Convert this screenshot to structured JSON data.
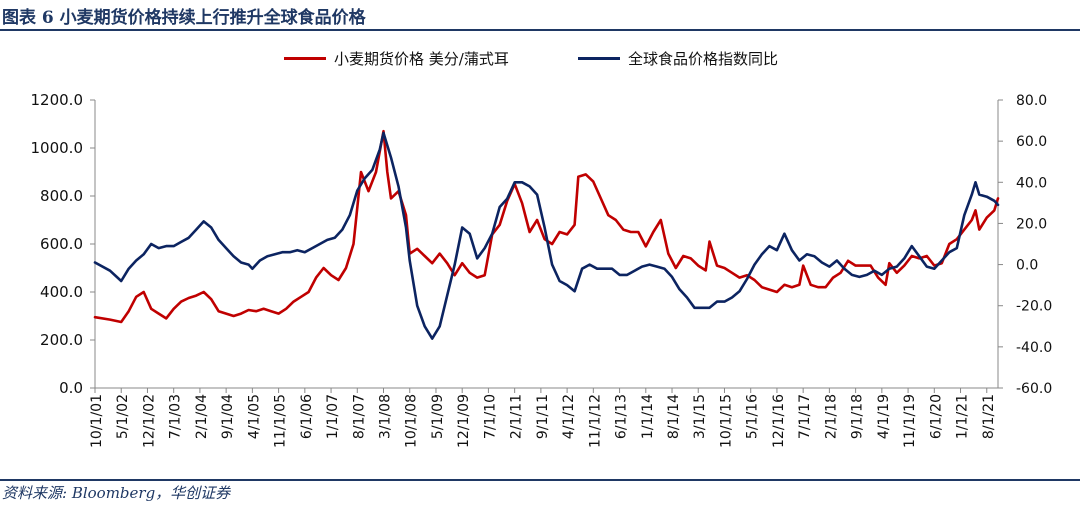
{
  "header": {
    "title": "图表 6 小麦期货价格持续上行推升全球食品价格"
  },
  "footer": {
    "source": "资料来源: Bloomberg，华创证券"
  },
  "colors": {
    "wheat": "#c00000",
    "food": "#0c2461",
    "accent": "#1f3864"
  },
  "chart_data": {
    "type": "line",
    "xlabel": "",
    "ylabel_left": "",
    "ylabel_right": "",
    "ylim_left": [
      0,
      1200
    ],
    "ylim_right": [
      -60,
      80
    ],
    "yticks_left": [
      "1200.0",
      "1000.0",
      "800.0",
      "600.0",
      "400.0",
      "200.0",
      "0.0"
    ],
    "yticks_right": [
      "80.0",
      "60.0",
      "40.0",
      "20.0",
      "0.0",
      "-20.0",
      "-40.0",
      "-60.0"
    ],
    "x_tick_labels": [
      "10/1/01",
      "5/1/02",
      "12/1/02",
      "7/1/03",
      "2/1/04",
      "9/1/04",
      "4/1/05",
      "11/1/05",
      "6/1/06",
      "1/1/07",
      "8/1/07",
      "3/1/08",
      "10/1/08",
      "5/1/09",
      "12/1/09",
      "7/1/10",
      "2/1/11",
      "9/1/11",
      "4/1/12",
      "11/1/12",
      "6/1/13",
      "1/1/14",
      "8/1/14",
      "3/1/15",
      "10/1/15",
      "5/1/16",
      "12/1/16",
      "7/1/17",
      "2/1/18",
      "9/1/18",
      "4/1/19",
      "11/1/19",
      "6/1/20",
      "1/1/21",
      "8/1/21"
    ],
    "legend_position": "top-center",
    "grid": false,
    "series": [
      {
        "name": "小麦期货价格 美分/蒲式耳",
        "axis": "left",
        "color": "#c00000",
        "points": [
          [
            "10/1/01",
            295
          ],
          [
            "2/1/02",
            285
          ],
          [
            "5/1/02",
            275
          ],
          [
            "7/1/02",
            320
          ],
          [
            "9/1/02",
            380
          ],
          [
            "11/1/02",
            400
          ],
          [
            "1/1/03",
            330
          ],
          [
            "3/1/03",
            310
          ],
          [
            "5/1/03",
            290
          ],
          [
            "7/1/03",
            330
          ],
          [
            "9/1/03",
            360
          ],
          [
            "11/1/03",
            375
          ],
          [
            "1/1/04",
            385
          ],
          [
            "3/1/04",
            400
          ],
          [
            "5/1/04",
            370
          ],
          [
            "7/1/04",
            320
          ],
          [
            "9/1/04",
            310
          ],
          [
            "11/1/04",
            300
          ],
          [
            "1/1/05",
            310
          ],
          [
            "3/1/05",
            325
          ],
          [
            "5/1/05",
            320
          ],
          [
            "7/1/05",
            330
          ],
          [
            "9/1/05",
            320
          ],
          [
            "11/1/05",
            310
          ],
          [
            "1/1/06",
            330
          ],
          [
            "3/1/06",
            360
          ],
          [
            "5/1/06",
            380
          ],
          [
            "7/1/06",
            400
          ],
          [
            "9/1/06",
            460
          ],
          [
            "11/1/06",
            500
          ],
          [
            "1/1/07",
            470
          ],
          [
            "3/1/07",
            450
          ],
          [
            "5/1/07",
            500
          ],
          [
            "7/1/07",
            600
          ],
          [
            "9/1/07",
            900
          ],
          [
            "11/1/07",
            820
          ],
          [
            "1/1/08",
            900
          ],
          [
            "3/1/08",
            1070
          ],
          [
            "4/1/08",
            900
          ],
          [
            "5/1/08",
            790
          ],
          [
            "7/1/08",
            820
          ],
          [
            "9/1/08",
            720
          ],
          [
            "10/1/08",
            560
          ],
          [
            "12/1/08",
            580
          ],
          [
            "2/1/09",
            550
          ],
          [
            "4/1/09",
            520
          ],
          [
            "6/1/09",
            560
          ],
          [
            "8/1/09",
            520
          ],
          [
            "10/1/09",
            470
          ],
          [
            "12/1/09",
            520
          ],
          [
            "2/1/10",
            480
          ],
          [
            "4/1/10",
            460
          ],
          [
            "6/1/10",
            470
          ],
          [
            "8/1/10",
            640
          ],
          [
            "10/1/10",
            680
          ],
          [
            "12/1/10",
            780
          ],
          [
            "2/1/11",
            850
          ],
          [
            "4/1/11",
            770
          ],
          [
            "6/1/11",
            650
          ],
          [
            "8/1/11",
            700
          ],
          [
            "10/1/11",
            620
          ],
          [
            "12/1/11",
            600
          ],
          [
            "2/1/12",
            650
          ],
          [
            "4/1/12",
            640
          ],
          [
            "6/1/12",
            680
          ],
          [
            "7/1/12",
            880
          ],
          [
            "9/1/12",
            890
          ],
          [
            "11/1/12",
            860
          ],
          [
            "1/1/13",
            790
          ],
          [
            "3/1/13",
            720
          ],
          [
            "5/1/13",
            700
          ],
          [
            "7/1/13",
            660
          ],
          [
            "9/1/13",
            650
          ],
          [
            "11/1/13",
            650
          ],
          [
            "1/1/14",
            590
          ],
          [
            "3/1/14",
            650
          ],
          [
            "5/1/14",
            700
          ],
          [
            "7/1/14",
            560
          ],
          [
            "9/1/14",
            500
          ],
          [
            "11/1/14",
            550
          ],
          [
            "1/1/15",
            540
          ],
          [
            "3/1/15",
            510
          ],
          [
            "5/1/15",
            490
          ],
          [
            "6/1/15",
            610
          ],
          [
            "8/1/15",
            510
          ],
          [
            "10/1/15",
            500
          ],
          [
            "12/1/15",
            480
          ],
          [
            "2/1/16",
            460
          ],
          [
            "4/1/16",
            470
          ],
          [
            "6/1/16",
            450
          ],
          [
            "8/1/16",
            420
          ],
          [
            "10/1/16",
            410
          ],
          [
            "12/1/16",
            400
          ],
          [
            "2/1/17",
            430
          ],
          [
            "4/1/17",
            420
          ],
          [
            "6/1/17",
            430
          ],
          [
            "7/1/17",
            510
          ],
          [
            "9/1/17",
            430
          ],
          [
            "11/1/17",
            420
          ],
          [
            "1/1/18",
            420
          ],
          [
            "3/1/18",
            460
          ],
          [
            "5/1/18",
            480
          ],
          [
            "7/1/18",
            530
          ],
          [
            "9/1/18",
            510
          ],
          [
            "11/1/18",
            510
          ],
          [
            "1/1/19",
            510
          ],
          [
            "3/1/19",
            460
          ],
          [
            "5/1/19",
            430
          ],
          [
            "6/1/19",
            520
          ],
          [
            "8/1/19",
            480
          ],
          [
            "10/1/19",
            510
          ],
          [
            "12/1/19",
            550
          ],
          [
            "2/1/20",
            540
          ],
          [
            "4/1/20",
            550
          ],
          [
            "6/1/20",
            510
          ],
          [
            "8/1/20",
            520
          ],
          [
            "10/1/20",
            600
          ],
          [
            "12/1/20",
            620
          ],
          [
            "2/1/21",
            660
          ],
          [
            "4/1/21",
            700
          ],
          [
            "5/1/21",
            740
          ],
          [
            "6/1/21",
            660
          ],
          [
            "8/1/21",
            710
          ],
          [
            "10/1/21",
            740
          ],
          [
            "11/1/21",
            790
          ]
        ]
      },
      {
        "name": "全球食品价格指数同比",
        "axis": "right",
        "color": "#0c2461",
        "points": [
          [
            "10/1/01",
            1
          ],
          [
            "2/1/02",
            -3
          ],
          [
            "5/1/02",
            -8
          ],
          [
            "7/1/02",
            -2
          ],
          [
            "9/1/02",
            2
          ],
          [
            "11/1/02",
            5
          ],
          [
            "1/1/03",
            10
          ],
          [
            "3/1/03",
            8
          ],
          [
            "5/1/03",
            9
          ],
          [
            "7/1/03",
            9
          ],
          [
            "9/1/03",
            11
          ],
          [
            "11/1/03",
            13
          ],
          [
            "1/1/04",
            17
          ],
          [
            "3/1/04",
            21
          ],
          [
            "5/1/04",
            18
          ],
          [
            "7/1/04",
            12
          ],
          [
            "9/1/04",
            8
          ],
          [
            "11/1/04",
            4
          ],
          [
            "1/1/05",
            1
          ],
          [
            "3/1/05",
            0
          ],
          [
            "4/1/05",
            -2
          ],
          [
            "6/1/05",
            2
          ],
          [
            "8/1/05",
            4
          ],
          [
            "10/1/05",
            5
          ],
          [
            "12/1/05",
            6
          ],
          [
            "2/1/06",
            6
          ],
          [
            "4/1/06",
            7
          ],
          [
            "6/1/06",
            6
          ],
          [
            "8/1/06",
            8
          ],
          [
            "10/1/06",
            10
          ],
          [
            "12/1/06",
            12
          ],
          [
            "2/1/07",
            13
          ],
          [
            "4/1/07",
            17
          ],
          [
            "6/1/07",
            24
          ],
          [
            "8/1/07",
            36
          ],
          [
            "10/1/07",
            42
          ],
          [
            "12/1/07",
            46
          ],
          [
            "2/1/08",
            56
          ],
          [
            "3/1/08",
            64
          ],
          [
            "5/1/08",
            52
          ],
          [
            "7/1/08",
            38
          ],
          [
            "9/1/08",
            18
          ],
          [
            "10/1/08",
            2
          ],
          [
            "12/1/08",
            -20
          ],
          [
            "2/1/09",
            -30
          ],
          [
            "4/1/09",
            -36
          ],
          [
            "6/1/09",
            -30
          ],
          [
            "8/1/09",
            -15
          ],
          [
            "10/1/09",
            0
          ],
          [
            "12/1/09",
            18
          ],
          [
            "2/1/10",
            15
          ],
          [
            "4/1/10",
            3
          ],
          [
            "6/1/10",
            8
          ],
          [
            "8/1/10",
            15
          ],
          [
            "10/1/10",
            28
          ],
          [
            "12/1/10",
            32
          ],
          [
            "2/1/11",
            40
          ],
          [
            "4/1/11",
            40
          ],
          [
            "6/1/11",
            38
          ],
          [
            "8/1/11",
            34
          ],
          [
            "10/1/11",
            18
          ],
          [
            "12/1/11",
            0
          ],
          [
            "2/1/12",
            -8
          ],
          [
            "4/1/12",
            -10
          ],
          [
            "6/1/12",
            -13
          ],
          [
            "8/1/12",
            -2
          ],
          [
            "10/1/12",
            0
          ],
          [
            "12/1/12",
            -2
          ],
          [
            "2/1/13",
            -2
          ],
          [
            "4/1/13",
            -2
          ],
          [
            "6/1/13",
            -5
          ],
          [
            "8/1/13",
            -5
          ],
          [
            "10/1/13",
            -3
          ],
          [
            "12/1/13",
            -1
          ],
          [
            "2/1/14",
            0
          ],
          [
            "4/1/14",
            -1
          ],
          [
            "6/1/14",
            -2
          ],
          [
            "8/1/14",
            -6
          ],
          [
            "10/1/14",
            -12
          ],
          [
            "12/1/14",
            -16
          ],
          [
            "2/1/15",
            -21
          ],
          [
            "4/1/15",
            -21
          ],
          [
            "6/1/15",
            -21
          ],
          [
            "8/1/15",
            -18
          ],
          [
            "10/1/15",
            -18
          ],
          [
            "12/1/15",
            -16
          ],
          [
            "2/1/16",
            -13
          ],
          [
            "4/1/16",
            -7
          ],
          [
            "6/1/16",
            0
          ],
          [
            "8/1/16",
            5
          ],
          [
            "10/1/16",
            9
          ],
          [
            "12/1/16",
            7
          ],
          [
            "2/1/17",
            15
          ],
          [
            "4/1/17",
            7
          ],
          [
            "6/1/17",
            2
          ],
          [
            "8/1/17",
            5
          ],
          [
            "10/1/17",
            4
          ],
          [
            "12/1/17",
            1
          ],
          [
            "2/1/18",
            -1
          ],
          [
            "4/1/18",
            2
          ],
          [
            "6/1/18",
            -2
          ],
          [
            "8/1/18",
            -5
          ],
          [
            "10/1/18",
            -6
          ],
          [
            "12/1/18",
            -5
          ],
          [
            "2/1/19",
            -3
          ],
          [
            "4/1/19",
            -5
          ],
          [
            "6/1/19",
            -2
          ],
          [
            "8/1/19",
            -1
          ],
          [
            "10/1/19",
            3
          ],
          [
            "12/1/19",
            9
          ],
          [
            "2/1/20",
            4
          ],
          [
            "4/1/20",
            -1
          ],
          [
            "6/1/20",
            -2
          ],
          [
            "8/1/20",
            2
          ],
          [
            "10/1/20",
            6
          ],
          [
            "12/1/20",
            8
          ],
          [
            "2/1/21",
            24
          ],
          [
            "4/1/21",
            34
          ],
          [
            "5/1/21",
            40
          ],
          [
            "6/1/21",
            34
          ],
          [
            "8/1/21",
            33
          ],
          [
            "10/1/21",
            31
          ],
          [
            "11/1/21",
            29
          ]
        ]
      }
    ]
  }
}
